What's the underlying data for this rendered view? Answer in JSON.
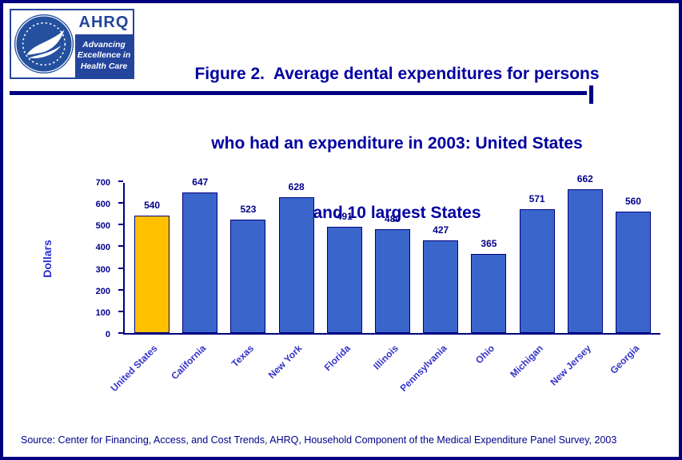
{
  "header": {
    "logo": {
      "ahrq": "AHRQ",
      "tagline_lines": [
        "Advancing",
        "Excellence in",
        "Health Care"
      ]
    },
    "title_lines": [
      "Figure 2.  Average dental expenditures for persons",
      "who had an expenditure in 2003: United States",
      "and 10 largest States"
    ]
  },
  "chart_data": {
    "type": "bar",
    "title": "Figure 2. Average dental expenditures for persons who had an expenditure in 2003: United States and 10 largest States",
    "categories": [
      "United States",
      "California",
      "Texas",
      "New York",
      "Florida",
      "Illinois",
      "Pennsylvania",
      "Ohio",
      "Michigan",
      "New Jersey",
      "Georgia"
    ],
    "values": [
      540,
      647,
      523,
      628,
      491,
      480,
      427,
      365,
      571,
      662,
      560
    ],
    "xlabel": "",
    "ylabel": "Dollars",
    "ylim": [
      0,
      700
    ],
    "ytick_step": 100,
    "grid": false,
    "legend": "none",
    "bar_colors": {
      "default": "#3A66CC",
      "highlight": "#FFC000",
      "highlight_index": 0,
      "border": "#000080"
    }
  },
  "footer": {
    "source": "Source: Center for Financing, Access, and Cost Trends, AHRQ, Household Component of the Medical Expenditure Panel Survey, 2003"
  }
}
